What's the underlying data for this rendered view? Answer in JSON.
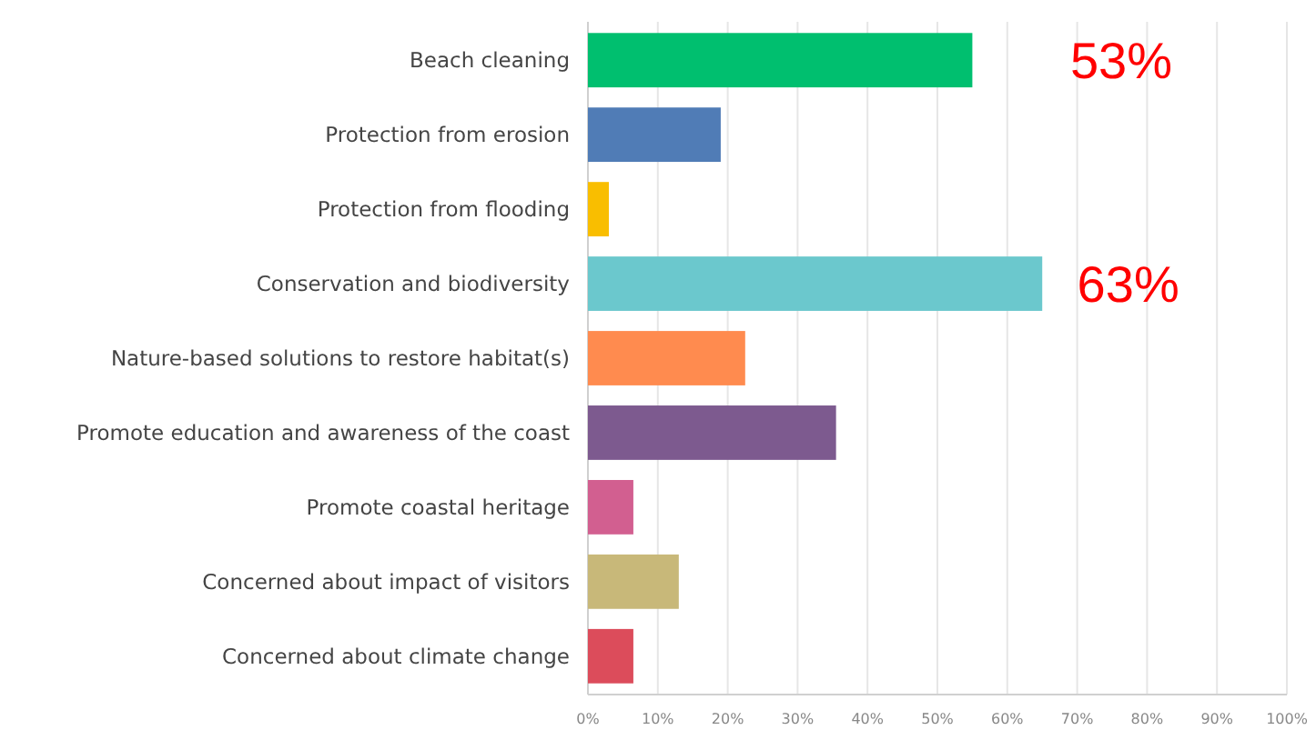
{
  "chart_data": {
    "type": "bar",
    "orientation": "horizontal",
    "categories": [
      "Beach cleaning",
      "Protection from erosion",
      "Protection from flooding",
      "Conservation and biodiversity",
      "Nature-based solutions to restore habitat(s)",
      "Promote education and awareness of the coast",
      "Promote coastal heritage",
      "Concerned about impact of visitors",
      "Concerned about climate change"
    ],
    "values": [
      55,
      19,
      3,
      65,
      22.5,
      35.5,
      6.5,
      13,
      6.5
    ],
    "colors": [
      "#00bf6f",
      "#507cb6",
      "#f9be00",
      "#6bc8cd",
      "#ff8b4f",
      "#7d5a8f",
      "#d25f90",
      "#c8b879",
      "#dc4c5b"
    ],
    "xlim": [
      0,
      100
    ],
    "xticks": [
      {
        "value": 0,
        "label": "0%"
      },
      {
        "value": 10,
        "label": "10%"
      },
      {
        "value": 20,
        "label": "20%"
      },
      {
        "value": 30,
        "label": "30%"
      },
      {
        "value": 40,
        "label": "40%"
      },
      {
        "value": 50,
        "label": "50%"
      },
      {
        "value": 60,
        "label": "60%"
      },
      {
        "value": 70,
        "label": "70%"
      },
      {
        "value": 80,
        "label": "80%"
      },
      {
        "value": 90,
        "label": "90%"
      },
      {
        "value": 100,
        "label": "100%"
      }
    ],
    "grid": "x",
    "annotations": [
      "53%",
      "63%"
    ]
  }
}
